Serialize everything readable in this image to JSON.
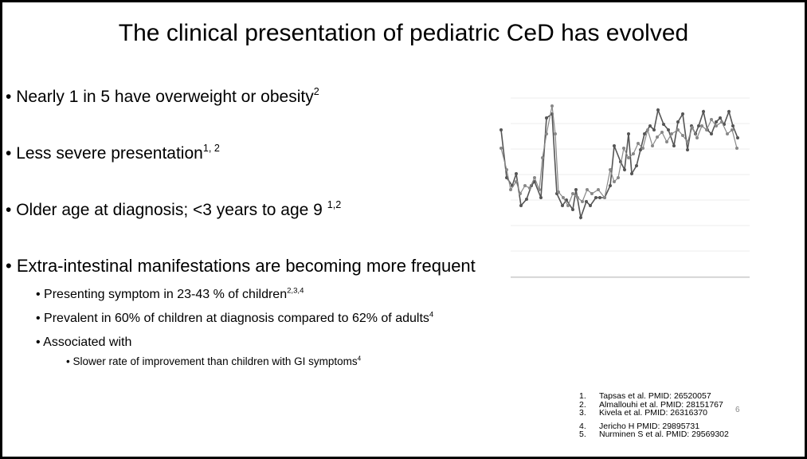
{
  "title": "The clinical presentation of pediatric CeD has evolved",
  "bullets": [
    {
      "text": "Nearly 1 in 5 have overweight or obesity",
      "sup": "2"
    },
    {
      "text": "Less severe presentation",
      "sup": "1, 2"
    },
    {
      "text": "Older age at diagnosis; <3 years to age 9 ",
      "sup": "1,2"
    },
    {
      "text": "Extra-intestinal manifestations are becoming more frequent",
      "sup": ""
    }
  ],
  "sub_bullets": [
    {
      "text": "Presenting symptom in 23-43 % of children",
      "sup": "2,3,4"
    },
    {
      "text": "Prevalent in 60% of children at diagnosis compared to 62% of adults",
      "sup": "4"
    },
    {
      "text": "Associated with",
      "sup": ""
    }
  ],
  "sub_sub_bullets": [
    {
      "text": "Slower rate of improvement than children with GI symptoms",
      "sup": "4"
    }
  ],
  "references": [
    {
      "num": "1.",
      "text": "Tapsas et al. PMID: 26520057"
    },
    {
      "num": "2.",
      "text": "Almallouhi et al. PMID: 28151767"
    },
    {
      "num": "3.",
      "text": "Kivela et al. PMID:  26316370"
    },
    {
      "num": "4.",
      "text": "Jericho H PMID: 29895731"
    },
    {
      "num": "5.",
      "text": "Nurminen S et al. PMID:  29569302"
    }
  ],
  "page_number": "6"
}
